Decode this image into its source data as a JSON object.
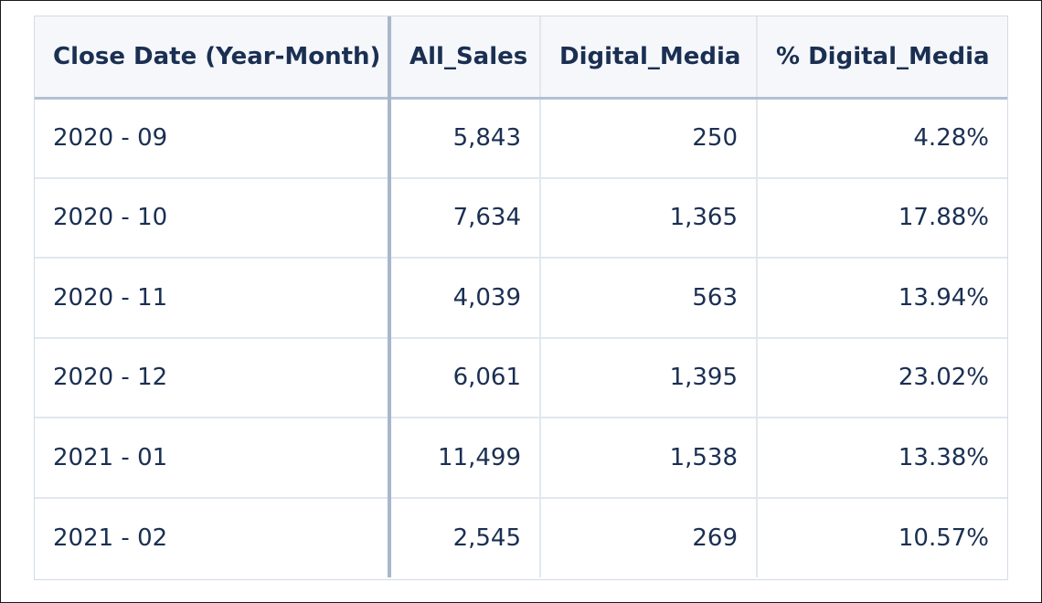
{
  "table": {
    "columns": [
      "Close Date (Year-Month)",
      "All_Sales",
      "Digital_Media",
      "% Digital_Media"
    ],
    "rows": [
      {
        "date": "2020 - 09",
        "all_sales": "5,843",
        "digital_media": "250",
        "pct_digital_media": "4.28%"
      },
      {
        "date": "2020 - 10",
        "all_sales": "7,634",
        "digital_media": "1,365",
        "pct_digital_media": "17.88%"
      },
      {
        "date": "2020 - 11",
        "all_sales": "4,039",
        "digital_media": "563",
        "pct_digital_media": "13.94%"
      },
      {
        "date": "2020 - 12",
        "all_sales": "6,061",
        "digital_media": "1,395",
        "pct_digital_media": "23.02%"
      },
      {
        "date": "2021 - 01",
        "all_sales": "11,499",
        "digital_media": "1,538",
        "pct_digital_media": "13.38%"
      },
      {
        "date": "2021 - 02",
        "all_sales": "2,545",
        "digital_media": "269",
        "pct_digital_media": "10.57%"
      }
    ]
  },
  "colors": {
    "text": "#1a2f52",
    "header_bg": "#f5f7fa",
    "grid_line": "#e2e7ee",
    "accent_line": "#a9b7cb"
  }
}
